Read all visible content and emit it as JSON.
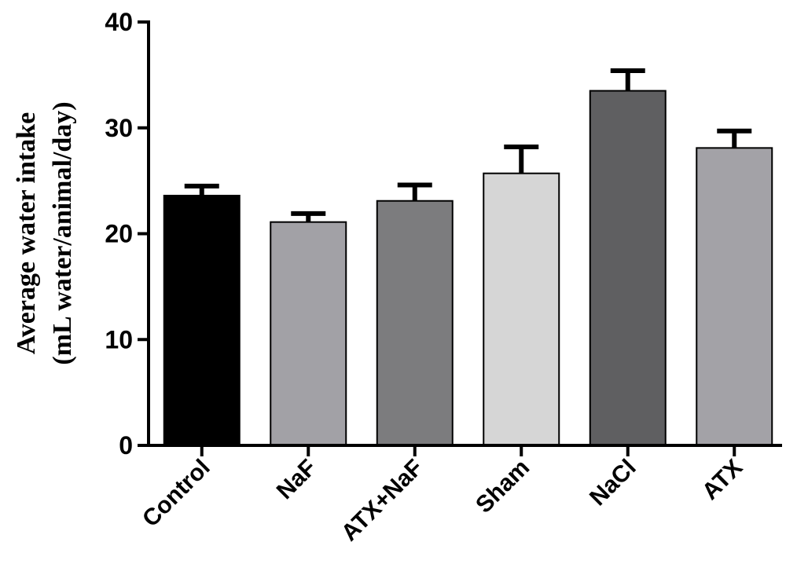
{
  "chart_data": {
    "type": "bar",
    "title": "",
    "xlabel": "",
    "ylabel_lines": [
      "Average water intake",
      "(mL water/animal/day)"
    ],
    "categories": [
      "Control",
      "NaF",
      "ATX+NaF",
      "Sham",
      "NaCl",
      "ATX"
    ],
    "values": [
      23.6,
      21.1,
      23.1,
      25.7,
      33.5,
      28.1
    ],
    "errors": [
      0.9,
      0.8,
      1.5,
      2.5,
      1.9,
      1.6
    ],
    "colors": [
      "#000000",
      "#a2a1a6",
      "#7c7c7e",
      "#d6d6d6",
      "#5f5f61",
      "#a3a2a7"
    ],
    "ylim": [
      0,
      40
    ],
    "yticks": [
      "0",
      "10",
      "20",
      "30",
      "40"
    ],
    "grid": false,
    "legend": "none"
  }
}
